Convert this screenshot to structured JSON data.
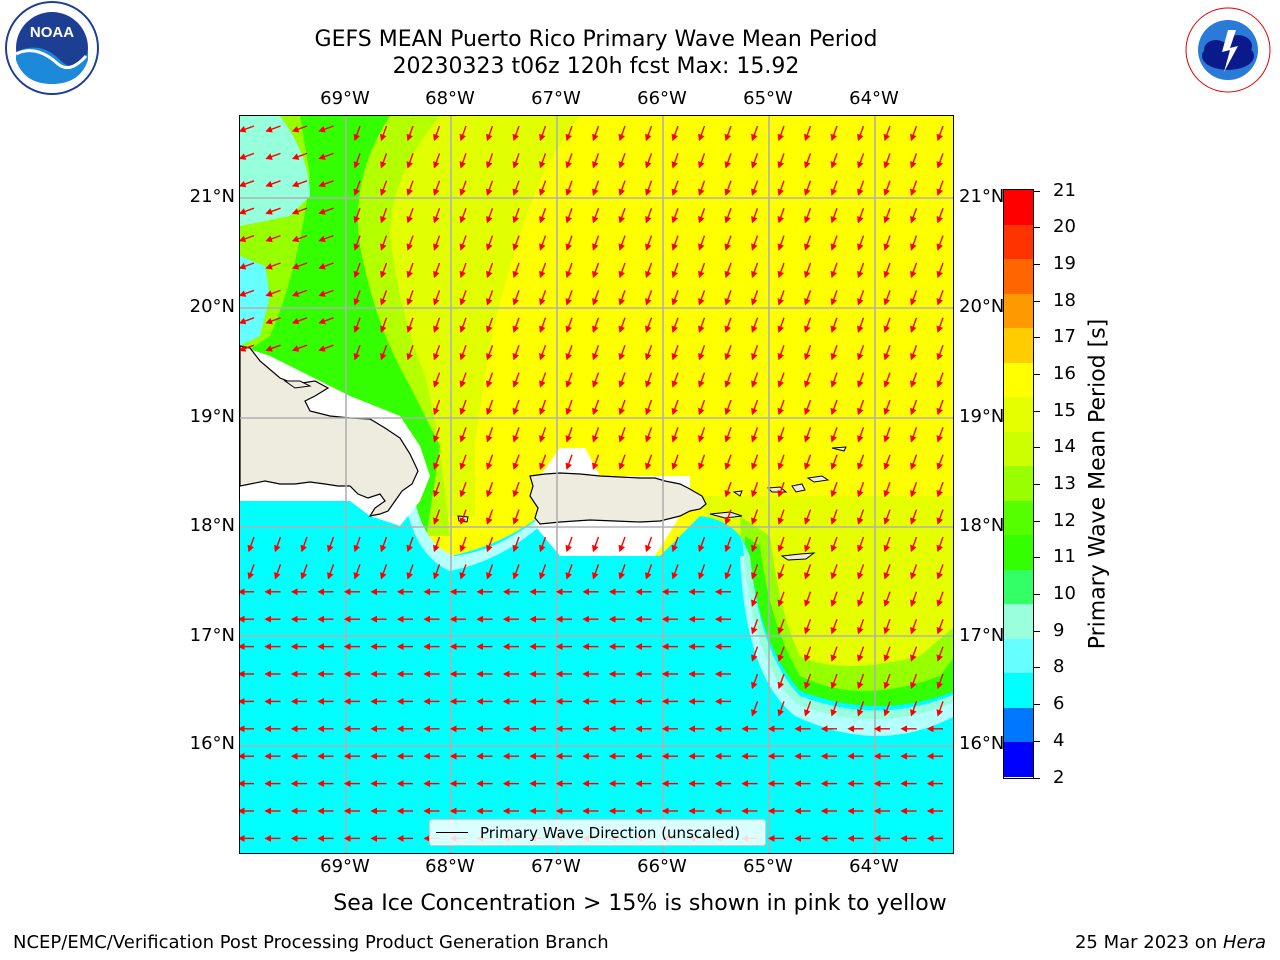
{
  "title": {
    "line1": "GEFS MEAN Puerto Rico Primary Wave Mean Period",
    "line2": "20230323 t06z 120h fcst   Max: 15.92"
  },
  "map": {
    "lon_labels": [
      "69°W",
      "68°W",
      "67°W",
      "66°W",
      "65°W",
      "64°W"
    ],
    "lat_labels": [
      "21°N",
      "20°N",
      "19°N",
      "18°N",
      "17°N",
      "16°N"
    ],
    "legend_label": "Primary Wave Direction (unscaled)",
    "colors": {
      "yellow": "#ffff00",
      "yellow_green": "#d2ff00",
      "light_green": "#96ff00",
      "green": "#32ff00",
      "mint": "#96ffdc",
      "light_cyan": "#b4ffff",
      "cyan": "#00ffff",
      "land": "#eeecde",
      "arrow": "#ff0000"
    }
  },
  "colorbar": {
    "label": "Primary Wave Mean Period [s]",
    "ticks": [
      "21",
      "20",
      "19",
      "18",
      "17",
      "16",
      "15",
      "14",
      "13",
      "12",
      "11",
      "10",
      "9",
      "8",
      "6",
      "4",
      "2"
    ],
    "colors_top_to_bottom": [
      "#ff0000",
      "#ff3300",
      "#ff6600",
      "#ff9900",
      "#ffcc00",
      "#ffff00",
      "#e6ff00",
      "#ccff00",
      "#99ff00",
      "#55ff00",
      "#33ff00",
      "#33ff66",
      "#99ffdd",
      "#66ffff",
      "#00ffff",
      "#0077ff",
      "#0000ff"
    ]
  },
  "caption": "Sea Ice Concentration > 15% is shown in pink to yellow",
  "footer": {
    "left": "NCEP/EMC/Verification Post Processing Product Generation Branch",
    "right_date": "25 Mar 2023 on ",
    "right_host": "Hera"
  },
  "logos": {
    "noaa": "NOAA",
    "nws": "NATIONAL WEATHER SERVICE"
  }
}
